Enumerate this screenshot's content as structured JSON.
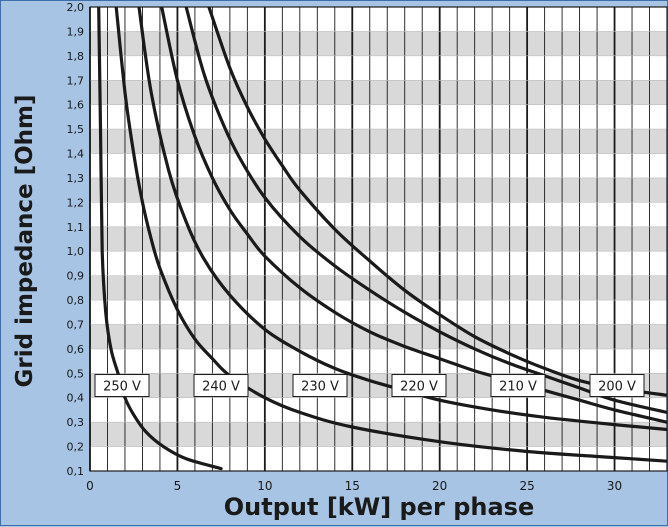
{
  "chart_data": {
    "type": "line",
    "title": "",
    "xlabel": "Output [kW] per phase",
    "ylabel": "Grid impedance [Ohm]",
    "xlim": [
      0,
      33
    ],
    "ylim": [
      0.1,
      2.0
    ],
    "x_ticks": [
      "0",
      "5",
      "10",
      "15",
      "20",
      "25",
      "30"
    ],
    "y_ticks": [
      "0,1",
      "0,2",
      "0,3",
      "0,4",
      "0,5",
      "0,6",
      "0,7",
      "0,8",
      "0,9",
      "1,0",
      "1,1",
      "1,2",
      "1,3",
      "1,4",
      "1,5",
      "1,6",
      "1,7",
      "1,8",
      "1,9",
      "2,0"
    ],
    "grid": true,
    "series": [
      {
        "name": "250 V",
        "points": [
          [
            0.5,
            2.0
          ],
          [
            0.6,
            1.5
          ],
          [
            0.7,
            1.0
          ],
          [
            0.9,
            0.75
          ],
          [
            1.2,
            0.6
          ],
          [
            1.6,
            0.5
          ],
          [
            2.0,
            0.4
          ],
          [
            2.5,
            0.33
          ],
          [
            3.2,
            0.26
          ],
          [
            4.2,
            0.2
          ],
          [
            5.5,
            0.15
          ],
          [
            7.5,
            0.11
          ]
        ]
      },
      {
        "name": "240 V",
        "points": [
          [
            1.5,
            2.0
          ],
          [
            2.0,
            1.65
          ],
          [
            2.5,
            1.4
          ],
          [
            3.0,
            1.2
          ],
          [
            3.5,
            1.05
          ],
          [
            4.0,
            0.93
          ],
          [
            5.0,
            0.76
          ],
          [
            6.0,
            0.64
          ],
          [
            7.0,
            0.56
          ],
          [
            8.0,
            0.49
          ],
          [
            10.0,
            0.4
          ],
          [
            12.0,
            0.34
          ],
          [
            15.0,
            0.28
          ],
          [
            20.0,
            0.22
          ],
          [
            25.0,
            0.18
          ],
          [
            30.0,
            0.155
          ],
          [
            33.0,
            0.14
          ]
        ]
      },
      {
        "name": "230 V",
        "points": [
          [
            2.8,
            2.0
          ],
          [
            3.5,
            1.65
          ],
          [
            4.5,
            1.33
          ],
          [
            5.5,
            1.12
          ],
          [
            6.5,
            0.97
          ],
          [
            8.0,
            0.82
          ],
          [
            10.0,
            0.68
          ],
          [
            12.0,
            0.59
          ],
          [
            14.0,
            0.52
          ],
          [
            16.0,
            0.47
          ],
          [
            18.0,
            0.43
          ],
          [
            20.0,
            0.39
          ],
          [
            23.0,
            0.35
          ],
          [
            26.0,
            0.32
          ],
          [
            30.0,
            0.29
          ],
          [
            33.0,
            0.27
          ]
        ]
      },
      {
        "name": "220 V",
        "points": [
          [
            4.1,
            2.0
          ],
          [
            5.0,
            1.7
          ],
          [
            6.0,
            1.47
          ],
          [
            7.0,
            1.3
          ],
          [
            8.0,
            1.17
          ],
          [
            9.0,
            1.07
          ],
          [
            10.0,
            0.98
          ],
          [
            12.0,
            0.85
          ],
          [
            14.0,
            0.75
          ],
          [
            16.0,
            0.67
          ],
          [
            18.0,
            0.61
          ],
          [
            20.0,
            0.56
          ],
          [
            22.0,
            0.51
          ],
          [
            24.0,
            0.47
          ],
          [
            26.0,
            0.43
          ],
          [
            28.0,
            0.39
          ],
          [
            30.0,
            0.35
          ],
          [
            33.0,
            0.3
          ]
        ]
      },
      {
        "name": "210 V",
        "points": [
          [
            5.5,
            2.0
          ],
          [
            6.5,
            1.73
          ],
          [
            7.5,
            1.54
          ],
          [
            8.5,
            1.39
          ],
          [
            10.0,
            1.22
          ],
          [
            12.0,
            1.06
          ],
          [
            14.0,
            0.94
          ],
          [
            16.0,
            0.84
          ],
          [
            18.0,
            0.75
          ],
          [
            20.0,
            0.67
          ],
          [
            22.0,
            0.6
          ],
          [
            24.0,
            0.54
          ],
          [
            26.0,
            0.49
          ],
          [
            28.0,
            0.44
          ],
          [
            30.0,
            0.39
          ],
          [
            33.0,
            0.34
          ]
        ]
      },
      {
        "name": "200 V",
        "points": [
          [
            6.8,
            2.0
          ],
          [
            8.0,
            1.75
          ],
          [
            9.0,
            1.59
          ],
          [
            10.0,
            1.46
          ],
          [
            11.0,
            1.35
          ],
          [
            12.0,
            1.25
          ],
          [
            14.0,
            1.09
          ],
          [
            16.0,
            0.96
          ],
          [
            18.0,
            0.84
          ],
          [
            20.0,
            0.74
          ],
          [
            22.0,
            0.65
          ],
          [
            24.0,
            0.58
          ],
          [
            26.0,
            0.52
          ],
          [
            28.0,
            0.47
          ],
          [
            30.0,
            0.44
          ],
          [
            33.0,
            0.41
          ]
        ]
      }
    ]
  }
}
